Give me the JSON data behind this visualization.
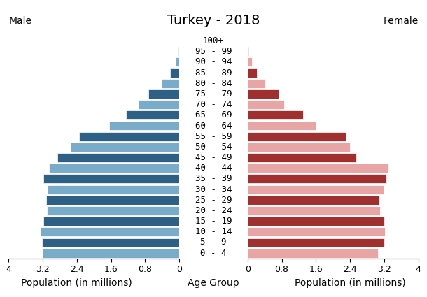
{
  "title": "Turkey - 2018",
  "male_label": "Male",
  "female_label": "Female",
  "xlabel": "Population (in millions)",
  "age_group_label": "Age Group",
  "age_groups": [
    "0 - 4",
    "5 - 9",
    "10 - 14",
    "15 - 19",
    "20 - 24",
    "25 - 29",
    "30 - 34",
    "35 - 39",
    "40 - 44",
    "45 - 49",
    "50 - 54",
    "55 - 59",
    "60 - 64",
    "65 - 69",
    "70 - 74",
    "75 - 79",
    "80 - 84",
    "85 - 89",
    "90 - 94",
    "95 - 99",
    "100+"
  ],
  "male_values": [
    3.2,
    3.22,
    3.25,
    3.18,
    3.1,
    3.12,
    3.08,
    3.18,
    3.05,
    2.85,
    2.55,
    2.35,
    1.65,
    1.25,
    0.95,
    0.72,
    0.42,
    0.22,
    0.08,
    0.02,
    0.005
  ],
  "female_values": [
    3.05,
    3.2,
    3.22,
    3.2,
    3.1,
    3.08,
    3.18,
    3.25,
    3.3,
    2.55,
    2.4,
    2.3,
    1.6,
    1.3,
    0.85,
    0.72,
    0.42,
    0.22,
    0.1,
    0.02,
    0.005
  ],
  "male_colors_dark": "#2e5f85",
  "male_colors_light": "#7aacc9",
  "female_colors_dark": "#a03030",
  "female_colors_light": "#e8a5a5",
  "xlim": 4.0,
  "background_color": "#ffffff",
  "title_fontsize": 14,
  "label_fontsize": 10,
  "tick_fontsize": 9,
  "bar_height": 0.85,
  "tick_positions": [
    0,
    0.8,
    1.6,
    2.4,
    3.2,
    4.0
  ],
  "tick_labels": [
    "0",
    "0.8",
    "1.6",
    "2.4",
    "3.2",
    "4"
  ]
}
